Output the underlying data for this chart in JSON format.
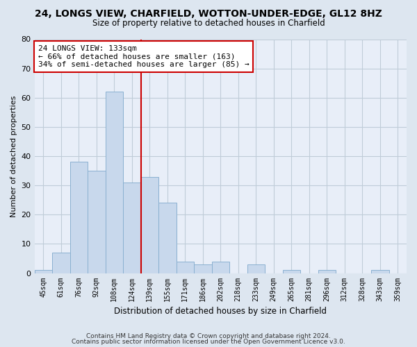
{
  "title": "24, LONGS VIEW, CHARFIELD, WOTTON-UNDER-EDGE, GL12 8HZ",
  "subtitle": "Size of property relative to detached houses in Charfield",
  "xlabel": "Distribution of detached houses by size in Charfield",
  "ylabel": "Number of detached properties",
  "categories": [
    "45sqm",
    "61sqm",
    "76sqm",
    "92sqm",
    "108sqm",
    "124sqm",
    "139sqm",
    "155sqm",
    "171sqm",
    "186sqm",
    "202sqm",
    "218sqm",
    "233sqm",
    "249sqm",
    "265sqm",
    "281sqm",
    "296sqm",
    "312sqm",
    "328sqm",
    "343sqm",
    "359sqm"
  ],
  "values": [
    1,
    7,
    38,
    35,
    62,
    31,
    33,
    24,
    4,
    3,
    4,
    0,
    3,
    0,
    1,
    0,
    1,
    0,
    0,
    1,
    0
  ],
  "bar_color": "#c8d8ec",
  "bar_edge_color": "#8ab0d0",
  "vline_x_index": 5.5,
  "vline_color": "#cc0000",
  "annotation_text": "24 LONGS VIEW: 133sqm\n← 66% of detached houses are smaller (163)\n34% of semi-detached houses are larger (85) →",
  "annotation_box_color": "#ffffff",
  "annotation_box_edge": "#cc0000",
  "ylim": [
    0,
    80
  ],
  "yticks": [
    0,
    10,
    20,
    30,
    40,
    50,
    60,
    70,
    80
  ],
  "footer_line1": "Contains HM Land Registry data © Crown copyright and database right 2024.",
  "footer_line2": "Contains public sector information licensed under the Open Government Licence v3.0.",
  "background_color": "#dde6f0",
  "plot_bg_color": "#e8eef8",
  "grid_color": "#c0ccd8"
}
